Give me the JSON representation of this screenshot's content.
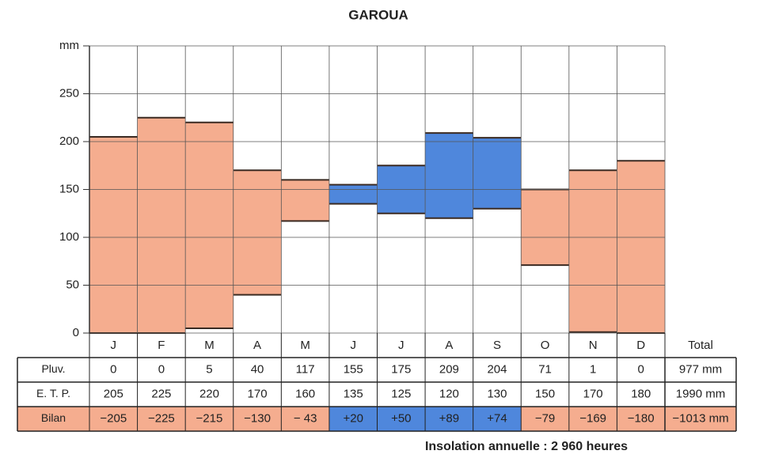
{
  "chart_data": {
    "type": "climate",
    "title": "GAROUA",
    "categories": [
      "J",
      "F",
      "M",
      "A",
      "M",
      "J",
      "J",
      "A",
      "S",
      "O",
      "N",
      "D"
    ],
    "series": [
      {
        "name": "Pluv.",
        "values": [
          0,
          0,
          5,
          40,
          117,
          155,
          175,
          209,
          204,
          71,
          1,
          0
        ]
      },
      {
        "name": "E. T. P.",
        "values": [
          205,
          225,
          220,
          170,
          160,
          135,
          125,
          120,
          130,
          150,
          170,
          180
        ]
      },
      {
        "name": "Bilan",
        "values": [
          -205,
          -225,
          -215,
          -130,
          -43,
          20,
          50,
          89,
          74,
          -79,
          -169,
          -180
        ],
        "value_labels": [
          "−205",
          "−225",
          "−215",
          "−130",
          "− 43",
          "+20",
          "+50",
          "+89",
          "+74",
          "−79",
          "−169",
          "−180"
        ]
      }
    ],
    "total_label": "Total",
    "totals": [
      "977 mm",
      "1990 mm",
      "−1013 mm"
    ],
    "ylim": [
      0,
      300
    ],
    "yticks": [
      0,
      50,
      100,
      150,
      200,
      250,
      {
        "value": 300,
        "label": "mm"
      }
    ],
    "grid": true,
    "deficit_color": "#f5ad8f",
    "surplus_color": "#4f87dc",
    "note": "Insolation annuelle : 2 960 heures"
  }
}
